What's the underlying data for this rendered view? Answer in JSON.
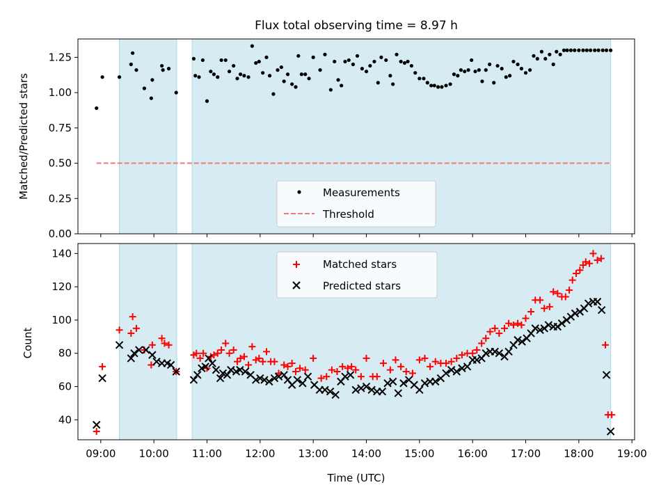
{
  "chart_data": [
    {
      "type": "scatter",
      "title": "Flux total observing time = 8.97 h",
      "xlabel": "",
      "ylabel": "Matched/Predicted stars",
      "x_unit": "hours UTC",
      "xlim": [
        8.57,
        19.05
      ],
      "ylim": [
        0,
        1.38
      ],
      "yticks": [
        0.0,
        0.25,
        0.5,
        0.75,
        1.0,
        1.25
      ],
      "ytick_labels": [
        "0.00",
        "0.25",
        "0.50",
        "0.75",
        "1.00",
        "1.25"
      ],
      "shaded_intervals": [
        [
          9.35,
          10.43
        ],
        [
          10.72,
          18.6
        ]
      ],
      "legend": {
        "position": "lower-center",
        "entries": [
          "Measurements",
          "Threshold"
        ]
      },
      "threshold": {
        "name": "Threshold",
        "value": 0.5,
        "x_range": [
          8.92,
          18.6
        ],
        "color": "#f07878"
      },
      "series": [
        {
          "name": "Measurements",
          "color": "#000000",
          "x": [
            8.92,
            9.03,
            9.35,
            9.57,
            9.6,
            9.67,
            9.82,
            9.95,
            9.97,
            10.15,
            10.17,
            10.28,
            10.42,
            10.75,
            10.78,
            10.85,
            10.92,
            11.0,
            11.07,
            11.13,
            11.2,
            11.27,
            11.35,
            11.42,
            11.5,
            11.57,
            11.63,
            11.7,
            11.78,
            11.85,
            11.92,
            11.98,
            12.05,
            12.12,
            12.18,
            12.25,
            12.33,
            12.4,
            12.45,
            12.52,
            12.6,
            12.67,
            12.72,
            12.78,
            12.85,
            12.92,
            13.0,
            13.13,
            13.22,
            13.33,
            13.4,
            13.47,
            13.53,
            13.6,
            13.67,
            13.75,
            13.83,
            13.92,
            14.0,
            14.07,
            14.15,
            14.22,
            14.28,
            14.37,
            14.45,
            14.5,
            14.57,
            14.65,
            14.72,
            14.78,
            14.85,
            14.92,
            15.0,
            15.08,
            15.15,
            15.22,
            15.28,
            15.35,
            15.42,
            15.5,
            15.58,
            15.65,
            15.72,
            15.78,
            15.85,
            15.92,
            15.98,
            16.05,
            16.12,
            16.18,
            16.25,
            16.32,
            16.4,
            16.47,
            16.55,
            16.63,
            16.7,
            16.77,
            16.85,
            16.92,
            17.0,
            17.08,
            17.15,
            17.22,
            17.3,
            17.37,
            17.45,
            17.52,
            17.58,
            17.65,
            17.72,
            17.78,
            17.85,
            17.92,
            18.0,
            18.08,
            18.15,
            18.22,
            18.3,
            18.37,
            18.45,
            18.52,
            18.6
          ],
          "y": [
            0.89,
            1.11,
            1.11,
            1.2,
            1.28,
            1.16,
            1.03,
            0.96,
            1.09,
            1.19,
            1.16,
            1.17,
            1.0,
            1.24,
            1.12,
            1.11,
            1.23,
            0.94,
            1.15,
            1.13,
            1.11,
            1.23,
            1.23,
            1.15,
            1.19,
            1.1,
            1.13,
            1.12,
            1.11,
            1.33,
            1.21,
            1.22,
            1.14,
            1.25,
            1.12,
            0.99,
            1.16,
            1.18,
            1.08,
            1.13,
            1.06,
            1.04,
            1.26,
            1.13,
            1.13,
            1.1,
            1.25,
            1.16,
            1.27,
            1.02,
            1.22,
            1.09,
            1.05,
            1.22,
            1.23,
            1.2,
            1.26,
            1.17,
            1.15,
            1.19,
            1.22,
            1.07,
            1.25,
            1.23,
            1.12,
            1.06,
            1.27,
            1.22,
            1.21,
            1.22,
            1.19,
            1.14,
            1.1,
            1.1,
            1.07,
            1.05,
            1.05,
            1.04,
            1.04,
            1.05,
            1.06,
            1.13,
            1.12,
            1.16,
            1.15,
            1.16,
            1.23,
            1.15,
            1.16,
            1.08,
            1.16,
            1.2,
            1.07,
            1.19,
            1.17,
            1.11,
            1.12,
            1.22,
            1.2,
            1.17,
            1.14,
            1.16,
            1.26,
            1.24,
            1.29,
            1.24,
            1.27,
            1.2,
            1.29,
            1.27,
            1.3,
            1.3,
            1.3,
            1.3,
            1.3,
            1.3,
            1.3,
            1.3,
            1.3,
            1.3,
            1.3,
            1.3,
            1.3
          ]
        }
      ]
    },
    {
      "type": "scatter",
      "title": "",
      "xlabel": "Time (UTC)",
      "ylabel": "Count",
      "x_unit": "hours UTC",
      "xlim": [
        8.57,
        19.05
      ],
      "ylim": [
        28,
        146
      ],
      "xticks": [
        9,
        10,
        11,
        12,
        13,
        14,
        15,
        16,
        17,
        18,
        19
      ],
      "xtick_labels": [
        "09:00",
        "10:00",
        "11:00",
        "12:00",
        "13:00",
        "14:00",
        "15:00",
        "16:00",
        "17:00",
        "18:00",
        "19:00"
      ],
      "yticks": [
        40,
        60,
        80,
        100,
        120,
        140
      ],
      "ytick_labels": [
        "40",
        "60",
        "80",
        "100",
        "120",
        "140"
      ],
      "shaded_intervals": [
        [
          9.35,
          10.43
        ],
        [
          10.72,
          18.6
        ]
      ],
      "legend": {
        "position": "top-center",
        "entries": [
          "Matched stars",
          "Predicted stars"
        ]
      },
      "series": [
        {
          "name": "Matched stars",
          "marker": "+",
          "color": "#ff0000",
          "x": [
            8.92,
            9.03,
            9.35,
            9.57,
            9.6,
            9.67,
            9.82,
            9.95,
            9.97,
            10.15,
            10.2,
            10.28,
            10.42,
            10.75,
            10.8,
            10.87,
            10.93,
            11.0,
            11.07,
            11.13,
            11.2,
            11.27,
            11.35,
            11.42,
            11.5,
            11.57,
            11.63,
            11.7,
            11.78,
            11.85,
            11.92,
            11.98,
            12.05,
            12.12,
            12.2,
            12.27,
            12.35,
            12.45,
            12.52,
            12.6,
            12.67,
            12.75,
            12.85,
            13.0,
            13.15,
            13.25,
            13.35,
            13.45,
            13.55,
            13.65,
            13.72,
            13.8,
            13.9,
            14.0,
            14.12,
            14.2,
            14.32,
            14.45,
            14.55,
            14.65,
            14.75,
            14.87,
            15.0,
            15.1,
            15.2,
            15.3,
            15.4,
            15.5,
            15.6,
            15.7,
            15.8,
            15.9,
            16.0,
            16.08,
            16.17,
            16.25,
            16.33,
            16.42,
            16.5,
            16.6,
            16.68,
            16.77,
            16.85,
            16.92,
            17.0,
            17.1,
            17.18,
            17.27,
            17.35,
            17.45,
            17.52,
            17.6,
            17.68,
            17.75,
            17.82,
            17.88,
            17.95,
            18.02,
            18.08,
            18.13,
            18.2,
            18.27,
            18.35,
            18.42,
            18.5,
            18.55,
            18.62
          ],
          "y": [
            33,
            72,
            94,
            92,
            102,
            95,
            82,
            73,
            85,
            89,
            86,
            85,
            69,
            79,
            80,
            77,
            80,
            71,
            78,
            79,
            80,
            82,
            86,
            80,
            82,
            75,
            77,
            78,
            73,
            84,
            76,
            77,
            75,
            81,
            75,
            75,
            68,
            73,
            72,
            74,
            69,
            71,
            70,
            77,
            65,
            66,
            70,
            69,
            72,
            71,
            72,
            70,
            66,
            77,
            66,
            66,
            74,
            70,
            76,
            72,
            69,
            68,
            76,
            77,
            72,
            75,
            74,
            74,
            75,
            77,
            79,
            80,
            80,
            82,
            86,
            89,
            93,
            95,
            92,
            95,
            98,
            97,
            98,
            97,
            101,
            105,
            112,
            112,
            107,
            108,
            117,
            116,
            114,
            114,
            118,
            124,
            128,
            130,
            133,
            135,
            134,
            140,
            136,
            137,
            85,
            43,
            43
          ]
        },
        {
          "name": "Predicted stars",
          "marker": "x",
          "color": "#000000",
          "x": [
            8.92,
            9.03,
            9.35,
            9.57,
            9.63,
            9.72,
            9.85,
            9.97,
            10.05,
            10.15,
            10.25,
            10.32,
            10.42,
            10.75,
            10.82,
            10.9,
            10.97,
            11.03,
            11.1,
            11.17,
            11.25,
            11.3,
            11.38,
            11.45,
            11.55,
            11.62,
            11.72,
            11.82,
            11.92,
            12.0,
            12.08,
            12.17,
            12.27,
            12.35,
            12.45,
            12.52,
            12.6,
            12.7,
            12.8,
            12.9,
            13.02,
            13.12,
            13.22,
            13.32,
            13.42,
            13.52,
            13.6,
            13.7,
            13.8,
            13.9,
            14.0,
            14.1,
            14.2,
            14.3,
            14.4,
            14.5,
            14.6,
            14.7,
            14.8,
            14.9,
            15.0,
            15.1,
            15.2,
            15.3,
            15.4,
            15.5,
            15.6,
            15.7,
            15.8,
            15.9,
            16.0,
            16.08,
            16.17,
            16.25,
            16.33,
            16.42,
            16.5,
            16.6,
            16.68,
            16.77,
            16.85,
            16.93,
            17.02,
            17.1,
            17.18,
            17.27,
            17.35,
            17.43,
            17.52,
            17.6,
            17.68,
            17.77,
            17.85,
            17.93,
            18.02,
            18.1,
            18.18,
            18.27,
            18.35,
            18.43,
            18.52,
            18.6
          ],
          "y": [
            37,
            65,
            85,
            77,
            80,
            82,
            82,
            79,
            75,
            74,
            74,
            73,
            69,
            64,
            67,
            71,
            72,
            77,
            74,
            70,
            65,
            68,
            67,
            70,
            69,
            70,
            69,
            67,
            64,
            65,
            64,
            63,
            65,
            66,
            67,
            64,
            61,
            64,
            62,
            66,
            61,
            58,
            58,
            57,
            55,
            63,
            66,
            67,
            58,
            59,
            60,
            58,
            57,
            57,
            62,
            63,
            56,
            62,
            64,
            61,
            58,
            62,
            63,
            63,
            65,
            68,
            70,
            69,
            71,
            72,
            76,
            76,
            77,
            80,
            81,
            81,
            80,
            78,
            81,
            85,
            88,
            87,
            89,
            92,
            95,
            94,
            95,
            97,
            96,
            96,
            98,
            100,
            102,
            104,
            105,
            107,
            110,
            111,
            111,
            106,
            67,
            33
          ]
        }
      ]
    }
  ]
}
